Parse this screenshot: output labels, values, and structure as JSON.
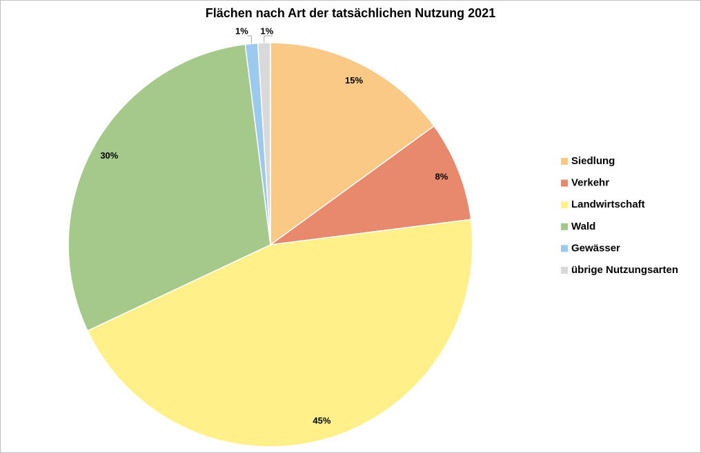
{
  "chart_data": {
    "type": "pie",
    "title": "Flächen nach Art der tatsächlichen Nutzung 2021",
    "categories": [
      "Siedlung",
      "Verkehr",
      "Landwirtschaft",
      "Wald",
      "Gewässer",
      "übrige Nutzungsarten"
    ],
    "values": [
      15,
      8,
      45,
      30,
      1,
      1
    ],
    "value_labels": [
      "15%",
      "8%",
      "45%",
      "30%",
      "1%",
      "1%"
    ],
    "colors": [
      "#fbc986",
      "#e8886c",
      "#fff08a",
      "#a5c98a",
      "#9ccaee",
      "#d9d9d9"
    ],
    "legend": "right"
  }
}
